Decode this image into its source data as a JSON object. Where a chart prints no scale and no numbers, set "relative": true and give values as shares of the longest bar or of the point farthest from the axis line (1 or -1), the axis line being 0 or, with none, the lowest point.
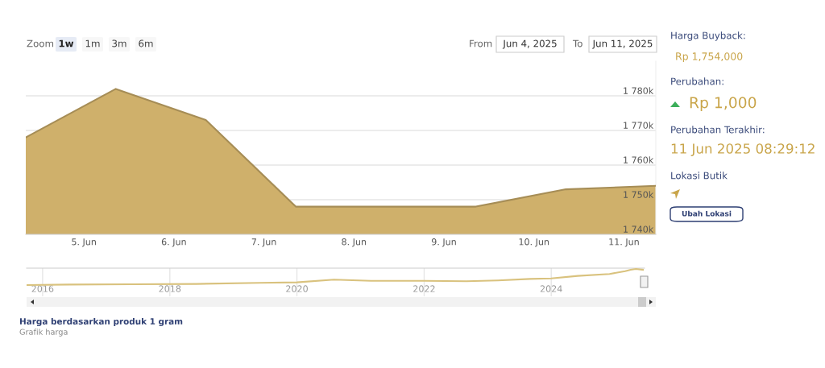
{
  "chart_data": [
    {
      "type": "area",
      "x": [
        "2025-06-04T08:30",
        "2025-06-05T08:30",
        "2025-06-06T08:30",
        "2025-06-07T08:30",
        "2025-06-08T08:30",
        "2025-06-09T08:30",
        "2025-06-10T08:30",
        "2025-06-11T08:30"
      ],
      "series": [
        {
          "color": "#cfb06b",
          "values": [
            1768000,
            1782000,
            1773000,
            1748000,
            1748000,
            1748000,
            1753000,
            1754000
          ]
        }
      ],
      "xlim": [
        "2025-06-04T08:30",
        "2025-06-11T08:30"
      ],
      "xticks": [
        {
          "value": "2025-06-05",
          "label": "5. Jun"
        },
        {
          "value": "2025-06-06",
          "label": "6. Jun"
        },
        {
          "value": "2025-06-07",
          "label": "7. Jun"
        },
        {
          "value": "2025-06-08",
          "label": "8. Jun"
        },
        {
          "value": "2025-06-09",
          "label": "9. Jun"
        },
        {
          "value": "2025-06-10",
          "label": "10. Jun"
        },
        {
          "value": "2025-06-11",
          "label": "11. Jun"
        }
      ],
      "ylim": [
        1740000,
        1790000
      ],
      "yticks": [
        {
          "value": 1740000,
          "label": "1 740k"
        },
        {
          "value": 1750000,
          "label": "1 750k"
        },
        {
          "value": 1760000,
          "label": "1 760k"
        },
        {
          "value": 1770000,
          "label": "1 770k"
        },
        {
          "value": 1780000,
          "label": "1 780k"
        }
      ],
      "grid": "y",
      "marker": "none",
      "line_style": "solid",
      "annotations": [
        "Zoom",
        "1w",
        "1m",
        "3m",
        "6m",
        "From",
        "Jun 4, 2025",
        "To",
        "Jun 11, 2025",
        "Harga berdasarkan produk 1 gram",
        "Grafik harga"
      ]
    },
    {
      "type": "line",
      "relative": true,
      "x": [
        "2015-10",
        "2016-06",
        "2017-06",
        "2018-06",
        "2019-06",
        "2020-01",
        "2020-08",
        "2021-03",
        "2022-01",
        "2022-09",
        "2023-03",
        "2023-09",
        "2024-01",
        "2024-06",
        "2024-12",
        "2025-03",
        "2025-04",
        "2025-05",
        "2025-06-11"
      ],
      "series": [
        {
          "color": "#d9c27e",
          "values": [
            0,
            0.03,
            0.05,
            0.07,
            0.14,
            0.17,
            0.34,
            0.26,
            0.26,
            0.24,
            0.29,
            0.38,
            0.41,
            0.57,
            0.69,
            0.86,
            0.95,
            1.0,
            0.95
          ]
        }
      ],
      "xlim": [
        "2015-10",
        "2025-06-20"
      ],
      "xticks": [
        {
          "value": "2016-01-01",
          "label": "2016"
        },
        {
          "value": "2018-01-01",
          "label": "2018"
        },
        {
          "value": "2020-01-01",
          "label": "2020"
        },
        {
          "value": "2022-01-01",
          "label": "2022"
        },
        {
          "value": "2024-01-01",
          "label": "2024"
        }
      ],
      "grid": "x",
      "marker": "none"
    },
    {
      "type": "other",
      "annotations": [
        "Harga Buyback:",
        "Rp 1,754,000",
        "Perubahan:",
        "Rp 1,000",
        "Perubahan Terakhir:",
        "11 Jun 2025 08:29:12",
        "Lokasi Butik",
        "Ubah Lokasi"
      ]
    }
  ]
}
